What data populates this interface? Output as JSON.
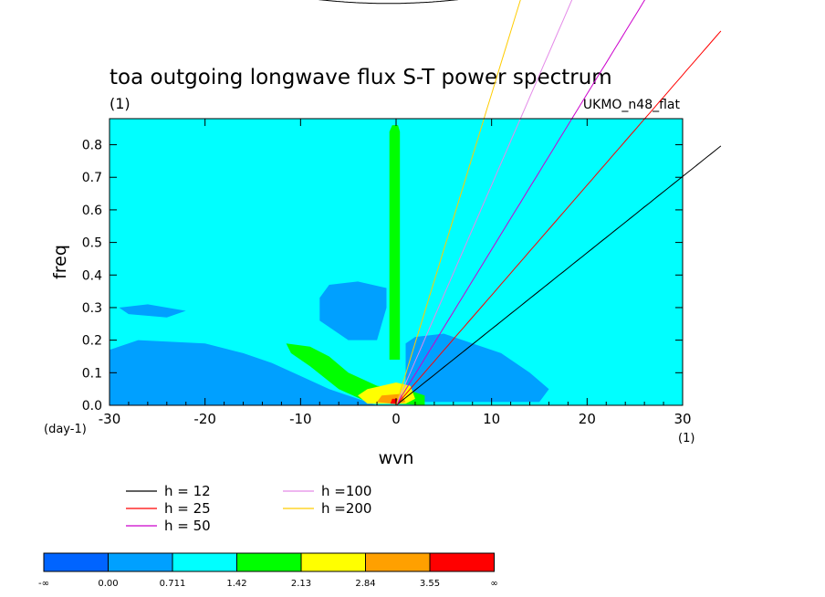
{
  "chart_data": {
    "type": "heatmap",
    "title": "toa outgoing longwave flux S-T power spectrum",
    "unit_label": "(1)",
    "model_label": "UKMO_n48_flat",
    "xlabel": "wvn",
    "ylabel": "freq",
    "x_unit": "(1)",
    "y_unit": "(day-1)",
    "xlim": [
      -30,
      30
    ],
    "ylim": [
      0,
      0.88
    ],
    "x_ticks": [
      -30,
      -20,
      -10,
      0,
      10,
      20,
      30
    ],
    "x_tick_labels": [
      "-30",
      "-20",
      "-10",
      "0",
      "10",
      "20",
      "30"
    ],
    "y_ticks": [
      0,
      0.1,
      0.2,
      0.3,
      0.4,
      0.5,
      0.6,
      0.7,
      0.8
    ],
    "y_tick_labels": [
      "0.0",
      "0.1",
      "0.2",
      "0.3",
      "0.4",
      "0.5",
      "0.6",
      "0.7",
      "0.8"
    ],
    "background_level_color": "#00ffff",
    "regions": [
      {
        "level": 1,
        "color": "#00a0ff",
        "points": [
          [
            -30,
            0
          ],
          [
            -30,
            0.17
          ],
          [
            -27,
            0.2
          ],
          [
            -20,
            0.19
          ],
          [
            -16,
            0.16
          ],
          [
            -13,
            0.13
          ],
          [
            -10,
            0.09
          ],
          [
            -7,
            0.05
          ],
          [
            -4,
            0.02
          ],
          [
            -2,
            0
          ]
        ]
      },
      {
        "level": 1,
        "color": "#00a0ff",
        "points": [
          [
            1,
            0.01
          ],
          [
            1,
            0.19
          ],
          [
            2,
            0.21
          ],
          [
            5,
            0.22
          ],
          [
            8,
            0.19
          ],
          [
            11,
            0.16
          ],
          [
            14,
            0.1
          ],
          [
            16,
            0.05
          ],
          [
            15,
            0.01
          ]
        ]
      },
      {
        "level": 1,
        "color": "#00a0ff",
        "points": [
          [
            -8,
            0.33
          ],
          [
            -7,
            0.37
          ],
          [
            -4,
            0.38
          ],
          [
            -1,
            0.36
          ],
          [
            -1,
            0.3
          ],
          [
            -2,
            0.2
          ],
          [
            -5,
            0.2
          ],
          [
            -8,
            0.26
          ]
        ]
      },
      {
        "level": 1,
        "color": "#00a0ff",
        "points": [
          [
            -29,
            0.3
          ],
          [
            -26,
            0.31
          ],
          [
            -22,
            0.29
          ],
          [
            -24,
            0.27
          ],
          [
            -28,
            0.28
          ]
        ]
      },
      {
        "level": 3,
        "color": "#00ff00",
        "points": [
          [
            -0.7,
            0.14
          ],
          [
            -0.7,
            0.84
          ],
          [
            -0.4,
            0.86
          ],
          [
            0.2,
            0.86
          ],
          [
            0.4,
            0.84
          ],
          [
            0.4,
            0.14
          ]
        ]
      },
      {
        "level": 3,
        "color": "#00ff00",
        "points": [
          [
            -11.5,
            0.19
          ],
          [
            -9,
            0.18
          ],
          [
            -7,
            0.15
          ],
          [
            -5,
            0.1
          ],
          [
            -2,
            0.06
          ],
          [
            1,
            0.05
          ],
          [
            3,
            0.03
          ],
          [
            3,
            0
          ],
          [
            -3,
            0.01
          ],
          [
            -6,
            0.05
          ],
          [
            -9,
            0.12
          ],
          [
            -11,
            0.16
          ]
        ]
      },
      {
        "level": 4,
        "color": "#ffff00",
        "points": [
          [
            -4,
            0.03
          ],
          [
            -3,
            0.05
          ],
          [
            0,
            0.07
          ],
          [
            1.5,
            0.06
          ],
          [
            2,
            0.02
          ],
          [
            1,
            0.005
          ],
          [
            -3,
            0.005
          ]
        ]
      },
      {
        "level": 5,
        "color": "#ffa000",
        "points": [
          [
            -2,
            0.01
          ],
          [
            -1.5,
            0.03
          ],
          [
            0.5,
            0.035
          ],
          [
            1,
            0.01
          ],
          [
            0,
            0.003
          ]
        ]
      },
      {
        "level": 6,
        "color": "#ff0000",
        "points": [
          [
            -0.6,
            0.005
          ],
          [
            -0.4,
            0.02
          ],
          [
            0.3,
            0.02
          ],
          [
            0.4,
            0.005
          ]
        ]
      }
    ],
    "series": [
      {
        "name": "h = 12",
        "h": 12,
        "color": "#000000"
      },
      {
        "name": "h = 25",
        "h": 25,
        "color": "#ff0000"
      },
      {
        "name": "h = 50",
        "h": 50,
        "color": "#cc00cc"
      },
      {
        "name": "h =100",
        "h": 100,
        "color": "#e48ae8"
      },
      {
        "name": "h =200",
        "h": 200,
        "color": "#ffcc00"
      }
    ],
    "colorbar": {
      "colors": [
        "#0064ff",
        "#00a0ff",
        "#00ffff",
        "#00ff00",
        "#ffff00",
        "#ffa000",
        "#ff0000"
      ],
      "labels": [
        "-∞",
        "0.00",
        "0.711",
        "1.42",
        "2.13",
        "2.84",
        "3.55",
        "∞"
      ]
    },
    "grid": false
  }
}
